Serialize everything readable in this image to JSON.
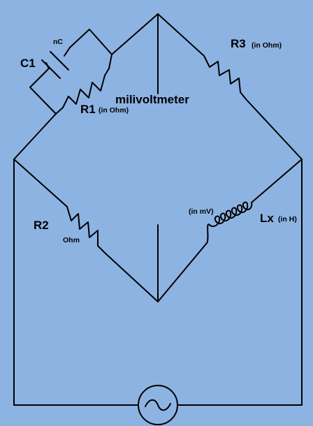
{
  "labels": {
    "c1": "C1",
    "c1_unit": "nC",
    "r1": "R1",
    "r1_unit": "(in Ohm)",
    "r2": "R2",
    "r2_unit": "Ohm",
    "r3": "R3",
    "r3_unit": "(in Ohm)",
    "lx": "Lx",
    "lx_unit": "(in H)",
    "meter": "milivoltmeter",
    "meter_unit": "(in mV)"
  },
  "colors": {
    "background": "#8db3e2",
    "wire": "#000000"
  },
  "icons": {
    "source": "ac-source-icon"
  }
}
